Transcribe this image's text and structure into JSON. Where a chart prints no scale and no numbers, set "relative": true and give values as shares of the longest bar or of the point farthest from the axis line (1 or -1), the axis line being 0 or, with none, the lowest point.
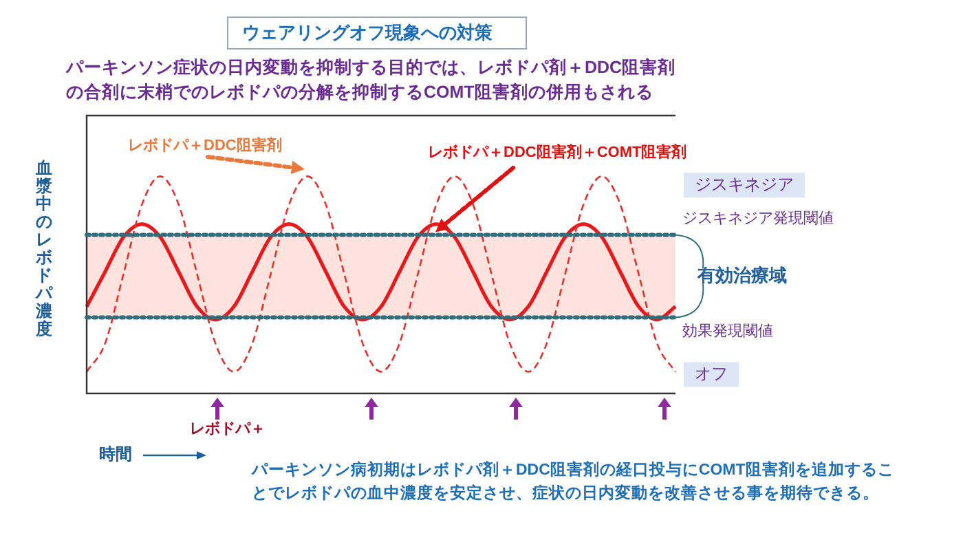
{
  "chart_data": {
    "type": "line",
    "title": "ウェアリングオフ現象への対策",
    "subtitle": "パーキンソン症状の日内変動を抑制する目的では、レボドパ剤＋DDC阻害剤の合剤に末梢でのレボドパの分解を抑制するCOMT阻害剤の併用もされる",
    "xlabel": "時間",
    "ylabel": "血漿中のレボドパ濃度",
    "relative": true,
    "legend": false,
    "marker": "none",
    "categories": [
      null,
      null,
      null,
      null,
      null,
      null,
      null,
      null,
      null,
      null,
      null,
      null,
      null,
      null,
      null,
      null,
      null,
      null,
      null,
      null,
      null,
      null,
      null,
      null,
      null,
      null,
      null,
      null,
      null,
      null,
      null,
      null,
      null
    ],
    "series": [
      {
        "name": "レボドパ＋DDC阻害剤",
        "color": "#e8302a",
        "line_style": "dashed",
        "values": [
          0.1,
          0.23,
          0.55,
          0.87,
          1.0,
          0.87,
          0.55,
          0.23,
          0.1,
          0.23,
          0.55,
          0.87,
          1.0,
          0.87,
          0.55,
          0.23,
          0.1,
          0.23,
          0.55,
          0.87,
          1.0,
          0.87,
          0.55,
          0.23,
          0.1,
          0.23,
          0.55,
          0.87,
          1.0,
          0.87,
          0.55,
          0.23,
          0.1
        ]
      },
      {
        "name": "レボドパ＋DDC阻害剤＋COMT阻害剤",
        "color": "#e8191c",
        "line_style": "solid",
        "values": [
          0.4,
          0.56,
          0.72,
          0.78,
          0.72,
          0.56,
          0.4,
          0.34,
          0.4,
          0.56,
          0.72,
          0.78,
          0.72,
          0.56,
          0.4,
          0.34,
          0.4,
          0.56,
          0.72,
          0.78,
          0.72,
          0.56,
          0.4,
          0.34,
          0.4,
          0.56,
          0.72,
          0.78,
          0.72,
          0.56,
          0.4,
          0.34,
          0.4
        ]
      }
    ],
    "bands": [
      {
        "axis": "y",
        "from": 0.35,
        "to": 0.73,
        "label": "有効治療域",
        "color": "#fde2de"
      }
    ],
    "ref_lines": [
      {
        "axis": "y",
        "value": 0.73,
        "label": "ジスキネジア発現閾値",
        "color": "#2e6e7e",
        "line_style": "dotted"
      },
      {
        "axis": "y",
        "value": 0.35,
        "label": "効果発現閾値",
        "color": "#2e6e7e",
        "line_style": "dotted"
      }
    ],
    "annotations": [
      "ジスキネジア",
      "オフ",
      "レボドパ＋",
      "パーキンソン病初期はレボドパ剤＋DDC阻害剤の経口投与にCOMT阻害剤を追加することでレボドパの血中濃度を安定させ、症状の日内変動を改善させる事を期待できる。"
    ]
  }
}
